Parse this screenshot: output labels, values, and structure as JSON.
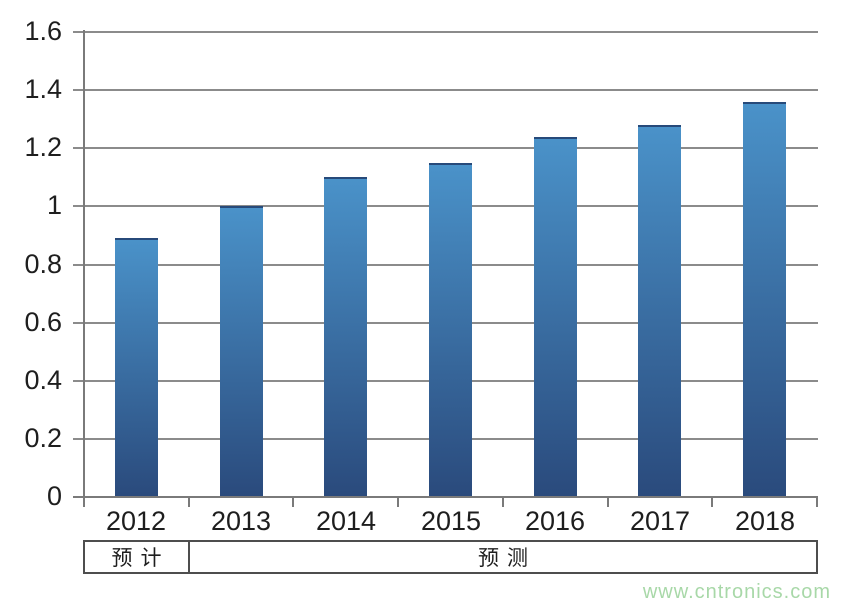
{
  "chart_data": {
    "type": "bar",
    "categories": [
      "2012",
      "2013",
      "2014",
      "2015",
      "2016",
      "2017",
      "2018"
    ],
    "values": [
      0.89,
      1.0,
      1.1,
      1.15,
      1.24,
      1.28,
      1.36
    ],
    "title": "",
    "xlabel": "",
    "ylabel": "",
    "ylim": [
      0,
      1.6
    ],
    "ytick_step": 0.2,
    "ytick_labels": [
      "0",
      "0.2",
      "0.4",
      "0.6",
      "0.8",
      "1",
      "1.2",
      "1.4",
      "1.6"
    ],
    "grid": true,
    "legend": "none",
    "bar_gradient_top": "#4a92c9",
    "bar_gradient_bottom": "#2a4a7c"
  },
  "period_table": {
    "cells": [
      {
        "label": "预计",
        "span": 1
      },
      {
        "label": "预测",
        "span": 6
      }
    ]
  },
  "watermark": "www.cntronics.com",
  "colors": {
    "grid": "#8b8b8b",
    "axis": "#7a7a7a",
    "text": "#1e1e1e",
    "table_border": "#4e4e4e",
    "watermark": "#a8d8a8",
    "background": "#ffffff"
  }
}
